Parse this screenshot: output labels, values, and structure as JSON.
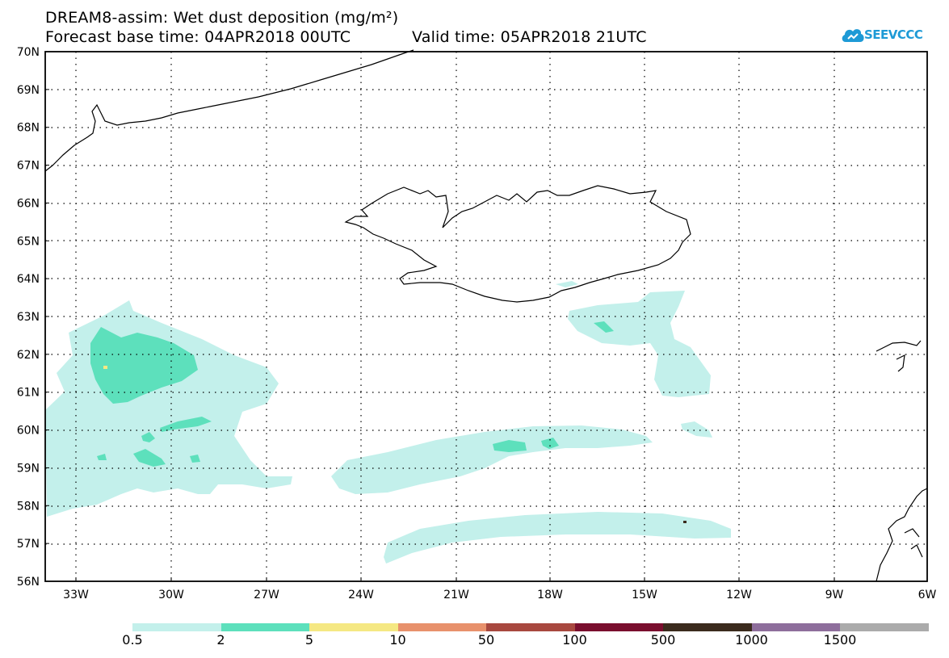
{
  "header": {
    "title_line1": "DREAM8-assim: Wet dust deposition (mg/m²)",
    "forecast_base": "Forecast base time: 04APR2018 00UTC",
    "valid_time": "Valid time: 05APR2018 21UTC"
  },
  "logo": {
    "text": "SEEVCCC",
    "icon": "cloud-icon",
    "color": "#1e9ad6"
  },
  "map": {
    "lat_labels": [
      "70N",
      "69N",
      "68N",
      "67N",
      "66N",
      "65N",
      "64N",
      "63N",
      "62N",
      "61N",
      "60N",
      "59N",
      "58N",
      "57N",
      "56N"
    ],
    "lon_labels": [
      "33W",
      "30W",
      "27W",
      "24W",
      "21W",
      "18W",
      "15W",
      "12W",
      "9W",
      "6W"
    ],
    "lat_range": [
      56,
      70
    ],
    "lon_range": [
      -34.5,
      -6
    ],
    "grid": "dotted"
  },
  "legend": {
    "thresholds": [
      "0.5",
      "2",
      "5",
      "10",
      "50",
      "100",
      "500",
      "1000",
      "1500"
    ],
    "colors": [
      "#c3f0eb",
      "#5de0bc",
      "#f5e883",
      "#e8916c",
      "#a8483f",
      "#7a0e2e",
      "#3b2b1d",
      "#8e6e9c",
      "#ababab"
    ]
  }
}
